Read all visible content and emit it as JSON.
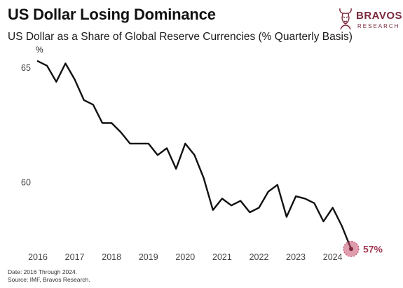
{
  "header": {
    "title": "US Dollar Losing Dominance",
    "subtitle": "US Dollar as a Share of Global Reserve Currencies (% Quarterly Basis)"
  },
  "brand": {
    "name": "BRAVOS",
    "sub": "RESEARCH",
    "color": "#7a2a3d",
    "icon": "bull-logo-icon"
  },
  "footer": {
    "date": "Date: 2016 Through 2024.",
    "source": "Source: IMF, Bravos Research."
  },
  "chart_data": {
    "type": "line",
    "title": "US Dollar as a Share of Global Reserve Currencies (% Quarterly Basis)",
    "ylabel": "%",
    "xlabel": "",
    "xlim": [
      2016.0,
      2024.9
    ],
    "ylim": [
      57.2,
      65.4
    ],
    "x_ticks": [
      "2016",
      "2017",
      "2018",
      "2019",
      "2020",
      "2021",
      "2022",
      "2023",
      "2024"
    ],
    "y_ticks": [
      "65",
      "60"
    ],
    "grid": false,
    "legend": "none",
    "line_color": "#111111",
    "highlight_color": "#c24a68",
    "end_label": "57%",
    "series": [
      {
        "x": [
          2016.0,
          2016.25,
          2016.5,
          2016.75,
          2017.0,
          2017.25,
          2017.5,
          2017.75,
          2018.0,
          2018.25,
          2018.5,
          2018.75,
          2019.0,
          2019.25,
          2019.5,
          2019.75,
          2020.0,
          2020.25,
          2020.5,
          2020.75,
          2021.0,
          2021.25,
          2021.5,
          2021.75,
          2022.0,
          2022.25,
          2022.5,
          2022.75,
          2023.0,
          2023.25,
          2023.5,
          2023.75,
          2024.0,
          2024.25,
          2024.5
        ],
        "y": [
          65.3,
          65.1,
          64.4,
          65.2,
          64.5,
          63.6,
          63.4,
          62.6,
          62.6,
          62.2,
          61.7,
          61.7,
          61.7,
          61.2,
          61.5,
          60.6,
          61.7,
          61.2,
          60.2,
          58.8,
          59.3,
          59.0,
          59.2,
          58.7,
          58.9,
          59.6,
          59.9,
          58.5,
          59.4,
          59.3,
          59.1,
          58.3,
          58.9,
          58.1,
          57.1
        ]
      }
    ]
  }
}
